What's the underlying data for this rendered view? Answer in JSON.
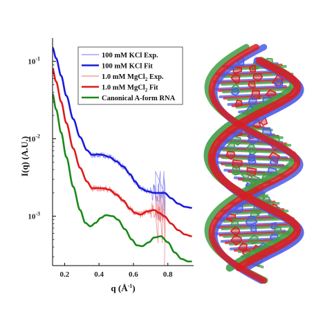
{
  "chart_data": {
    "type": "line",
    "xlabel": "q (Å",
    "xlabel_exp": "-1",
    "xlabel_close": ")",
    "ylabel": "I(q) (A.U.)",
    "x_scale": "linear",
    "y_scale": "log",
    "xlim": [
      0.13,
      0.95
    ],
    "ylim": [
      0.00023,
      0.2
    ],
    "x_ticks": [
      {
        "value": 0.2,
        "label": "0.2"
      },
      {
        "value": 0.4,
        "label": "0.4"
      },
      {
        "value": 0.6,
        "label": "0.6"
      },
      {
        "value": 0.8,
        "label": "0.8"
      }
    ],
    "y_ticks": [
      {
        "value": 0.1,
        "base": "10",
        "exp": "-1"
      },
      {
        "value": 0.01,
        "base": "10",
        "exp": "-2"
      },
      {
        "value": 0.001,
        "base": "10",
        "exp": "-3"
      }
    ],
    "grid": false,
    "legend_position": "top-right",
    "series": [
      {
        "name": "100 mM KCl Exp.",
        "color": "#8f8ff2",
        "style": "noisy",
        "x": [
          0.13,
          0.15,
          0.18,
          0.21,
          0.25,
          0.29,
          0.33,
          0.36,
          0.39,
          0.42,
          0.46,
          0.5,
          0.54,
          0.58,
          0.61,
          0.64,
          0.68,
          0.72,
          0.75,
          0.78
        ],
        "y": [
          0.15,
          0.11,
          0.065,
          0.036,
          0.018,
          0.0105,
          0.0071,
          0.0062,
          0.0063,
          0.0062,
          0.0058,
          0.0051,
          0.0044,
          0.0035,
          0.0028,
          0.0023,
          0.0021,
          0.002,
          0.002,
          0.002
        ]
      },
      {
        "name": "100 mM KCl Fit",
        "color": "#1a1adb",
        "style": "smooth",
        "x": [
          0.13,
          0.15,
          0.18,
          0.21,
          0.25,
          0.29,
          0.33,
          0.36,
          0.39,
          0.42,
          0.46,
          0.5,
          0.54,
          0.58,
          0.61,
          0.64,
          0.68,
          0.72,
          0.75,
          0.78,
          0.82,
          0.86,
          0.9,
          0.94
        ],
        "y": [
          0.15,
          0.11,
          0.065,
          0.036,
          0.018,
          0.0105,
          0.0071,
          0.0062,
          0.0063,
          0.0062,
          0.0058,
          0.0051,
          0.0044,
          0.0035,
          0.0028,
          0.0023,
          0.0021,
          0.002,
          0.002,
          0.002,
          0.0017,
          0.00145,
          0.00132,
          0.00128
        ]
      },
      {
        "name": "1.0 mM MgCl",
        "name_sub": "2",
        "name_tail": " Exp.",
        "color": "#f08a8a",
        "style": "noisy",
        "x": [
          0.13,
          0.15,
          0.18,
          0.21,
          0.25,
          0.29,
          0.33,
          0.36,
          0.39,
          0.42,
          0.46,
          0.5,
          0.54,
          0.58,
          0.61,
          0.64,
          0.68,
          0.72,
          0.75,
          0.78
        ],
        "y": [
          0.08,
          0.055,
          0.03,
          0.016,
          0.0075,
          0.0042,
          0.0028,
          0.0023,
          0.0023,
          0.0023,
          0.0022,
          0.0019,
          0.0016,
          0.00125,
          0.0011,
          0.00105,
          0.00115,
          0.0012,
          0.0011,
          0.001
        ]
      },
      {
        "name": "1.0 mM MgCl",
        "name_sub": "2",
        "name_tail": " Fit",
        "color": "#dd1a1a",
        "style": "smooth",
        "x": [
          0.13,
          0.15,
          0.18,
          0.21,
          0.25,
          0.29,
          0.33,
          0.36,
          0.39,
          0.42,
          0.46,
          0.5,
          0.54,
          0.58,
          0.61,
          0.64,
          0.68,
          0.72,
          0.75,
          0.78,
          0.82,
          0.86,
          0.9,
          0.94
        ],
        "y": [
          0.08,
          0.055,
          0.03,
          0.016,
          0.0075,
          0.0042,
          0.0028,
          0.0023,
          0.0023,
          0.0023,
          0.0022,
          0.0019,
          0.0016,
          0.00125,
          0.0011,
          0.00105,
          0.00115,
          0.0012,
          0.0011,
          0.001,
          0.0008,
          0.00066,
          0.00058,
          0.00055
        ]
      },
      {
        "name": "Canonical A-form RNA",
        "color": "#188a18",
        "style": "smooth",
        "x": [
          0.13,
          0.15,
          0.18,
          0.21,
          0.25,
          0.29,
          0.32,
          0.35,
          0.38,
          0.41,
          0.44,
          0.48,
          0.51,
          0.55,
          0.59,
          0.62,
          0.65,
          0.69,
          0.72,
          0.76,
          0.8,
          0.84,
          0.88,
          0.92,
          0.94
        ],
        "y": [
          0.038,
          0.024,
          0.012,
          0.0058,
          0.0024,
          0.0012,
          0.00082,
          0.00074,
          0.00082,
          0.00095,
          0.00103,
          0.001,
          0.0009,
          0.00068,
          0.0005,
          0.00042,
          0.00041,
          0.00046,
          0.00053,
          0.00055,
          0.00046,
          0.00034,
          0.00028,
          0.00026,
          0.00026
        ]
      }
    ]
  },
  "structure": {
    "colors": {
      "blue": "#4a5be8",
      "red": "#d91f1f",
      "green": "#3f9f47"
    }
  }
}
